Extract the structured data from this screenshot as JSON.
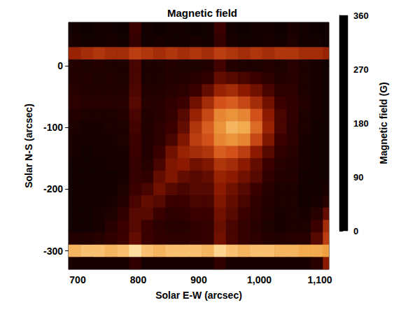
{
  "chart_data": {
    "type": "heatmap",
    "title": "Magnetic field",
    "x_label": "Solar E-W (arcsec)",
    "y_label": "Solar N-S (arcsec)",
    "xlim": [
      685,
      1115
    ],
    "xticks": [
      700,
      800,
      900,
      1000,
      1100
    ],
    "ylim": [
      -330,
      70
    ],
    "yticks": [
      -300,
      -200,
      -100,
      0
    ],
    "x": [
      695,
      715,
      735,
      755,
      775,
      795,
      815,
      835,
      855,
      875,
      895,
      915,
      935,
      955,
      975,
      995,
      1015,
      1035,
      1055,
      1075,
      1095,
      1115
    ],
    "y": [
      60,
      40,
      20,
      0,
      -20,
      -40,
      -60,
      -80,
      -100,
      -120,
      -140,
      -160,
      -180,
      -200,
      -220,
      -240,
      -260,
      -280,
      -300,
      -320
    ],
    "values": [
      [
        20,
        15,
        20,
        20,
        15,
        60,
        20,
        15,
        20,
        20,
        15,
        20,
        60,
        20,
        15,
        20,
        20,
        15,
        25,
        20,
        15,
        15
      ],
      [
        25,
        20,
        20,
        25,
        20,
        55,
        20,
        25,
        20,
        20,
        25,
        20,
        55,
        25,
        20,
        20,
        25,
        20,
        30,
        20,
        20,
        15
      ],
      [
        130,
        140,
        150,
        140,
        140,
        160,
        150,
        140,
        150,
        140,
        150,
        140,
        160,
        150,
        140,
        150,
        140,
        150,
        150,
        140,
        140,
        130
      ],
      [
        35,
        30,
        35,
        30,
        30,
        70,
        30,
        30,
        35,
        30,
        30,
        35,
        65,
        35,
        30,
        30,
        35,
        30,
        40,
        30,
        25,
        20
      ],
      [
        35,
        35,
        30,
        35,
        30,
        70,
        30,
        30,
        35,
        35,
        40,
        50,
        90,
        80,
        70,
        60,
        45,
        35,
        40,
        30,
        25,
        20
      ],
      [
        40,
        35,
        35,
        35,
        35,
        75,
        35,
        35,
        40,
        45,
        60,
        90,
        130,
        140,
        120,
        100,
        70,
        45,
        45,
        30,
        25,
        20
      ],
      [
        45,
        40,
        40,
        40,
        40,
        80,
        40,
        40,
        50,
        60,
        100,
        140,
        180,
        190,
        170,
        140,
        100,
        60,
        50,
        35,
        25,
        20
      ],
      [
        35,
        30,
        30,
        30,
        35,
        70,
        35,
        40,
        55,
        80,
        130,
        170,
        220,
        230,
        220,
        180,
        120,
        70,
        50,
        30,
        25,
        20
      ],
      [
        30,
        25,
        25,
        30,
        30,
        65,
        35,
        45,
        60,
        90,
        150,
        190,
        230,
        260,
        250,
        200,
        130,
        70,
        45,
        30,
        20,
        20
      ],
      [
        25,
        25,
        25,
        25,
        30,
        60,
        35,
        45,
        70,
        110,
        160,
        180,
        220,
        230,
        220,
        170,
        110,
        60,
        45,
        25,
        20,
        20
      ],
      [
        25,
        20,
        25,
        25,
        25,
        60,
        35,
        60,
        100,
        130,
        140,
        150,
        190,
        180,
        160,
        120,
        80,
        50,
        40,
        25,
        20,
        20
      ],
      [
        20,
        20,
        20,
        25,
        25,
        55,
        40,
        70,
        110,
        120,
        100,
        110,
        150,
        140,
        120,
        90,
        60,
        40,
        35,
        25,
        20,
        20
      ],
      [
        20,
        20,
        20,
        20,
        25,
        55,
        50,
        90,
        110,
        90,
        80,
        90,
        130,
        120,
        100,
        80,
        50,
        35,
        35,
        20,
        20,
        20
      ],
      [
        20,
        20,
        20,
        20,
        30,
        60,
        70,
        100,
        80,
        70,
        80,
        80,
        120,
        100,
        80,
        60,
        40,
        30,
        30,
        20,
        20,
        25
      ],
      [
        20,
        20,
        20,
        25,
        35,
        70,
        90,
        80,
        60,
        60,
        70,
        70,
        110,
        90,
        70,
        50,
        35,
        30,
        30,
        20,
        25,
        40
      ],
      [
        20,
        20,
        25,
        30,
        50,
        80,
        80,
        60,
        45,
        50,
        60,
        60,
        100,
        80,
        60,
        45,
        35,
        25,
        30,
        25,
        40,
        90
      ],
      [
        20,
        20,
        25,
        40,
        60,
        80,
        60,
        45,
        40,
        40,
        50,
        55,
        95,
        70,
        55,
        40,
        30,
        25,
        30,
        30,
        60,
        140
      ],
      [
        35,
        35,
        40,
        50,
        60,
        90,
        60,
        50,
        45,
        45,
        50,
        55,
        100,
        70,
        55,
        45,
        35,
        35,
        40,
        40,
        80,
        160
      ],
      [
        260,
        270,
        270,
        260,
        270,
        300,
        270,
        260,
        270,
        270,
        270,
        260,
        290,
        270,
        260,
        270,
        270,
        260,
        260,
        250,
        250,
        240
      ],
      [
        25,
        25,
        25,
        25,
        25,
        50,
        25,
        25,
        25,
        25,
        25,
        25,
        50,
        25,
        25,
        25,
        25,
        25,
        25,
        25,
        40,
        120
      ]
    ],
    "colorbar_label": "Magnetic field (G)",
    "colorbar_range": [
      0,
      360
    ],
    "colorbar_ticks": [
      0,
      90,
      180,
      270,
      360
    ]
  }
}
